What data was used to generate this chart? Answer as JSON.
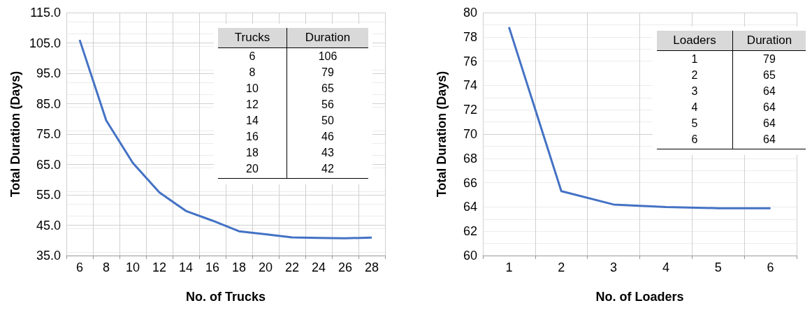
{
  "chart_data": [
    {
      "type": "line",
      "xlabel": "No. of Trucks",
      "ylabel": "Total Duration (Days)",
      "categories": [
        "6",
        "8",
        "10",
        "12",
        "14",
        "16",
        "18",
        "20",
        "22",
        "24",
        "26",
        "28"
      ],
      "series": [
        {
          "color": "#4472c4",
          "values": [
            106,
            79.5,
            65.5,
            55.8,
            49.7,
            46.5,
            43,
            42,
            41,
            40.8,
            40.7,
            40.9
          ]
        }
      ],
      "ylim": [
        35,
        115
      ],
      "yticks": [
        {
          "value": 35,
          "label": "35.0"
        },
        {
          "value": 45,
          "label": "45.0"
        },
        {
          "value": 55,
          "label": "55.0"
        },
        {
          "value": 65,
          "label": "65.0"
        },
        {
          "value": 75,
          "label": "75.0"
        },
        {
          "value": 85,
          "label": "85.0"
        },
        {
          "value": 95,
          "label": "95.0"
        },
        {
          "value": 105,
          "label": "105.0"
        },
        {
          "value": 115,
          "label": "115.0"
        }
      ],
      "annotations": [
        "Trucks",
        "Duration",
        "6",
        "106",
        "8",
        "79",
        "10",
        "65",
        "12",
        "56",
        "14",
        "50",
        "16",
        "46",
        "18",
        "43",
        "20",
        "42"
      ],
      "grid": true,
      "marker": "none"
    },
    {
      "type": "line",
      "xlabel": "No. of Loaders",
      "ylabel": "Total Duration (Days)",
      "categories": [
        "1",
        "2",
        "3",
        "4",
        "5",
        "6"
      ],
      "series": [
        {
          "color": "#4472c4",
          "values": [
            78.8,
            65.3,
            64.2,
            64.0,
            63.9,
            63.9
          ]
        }
      ],
      "ylim": [
        60,
        80
      ],
      "yticks": [
        60,
        62,
        64,
        66,
        68,
        70,
        72,
        74,
        76,
        78,
        80
      ],
      "annotations": [
        "Loaders",
        "Duration",
        "1",
        "79",
        "2",
        "65",
        "3",
        "64",
        "4",
        "64",
        "5",
        "64",
        "6",
        "64"
      ],
      "grid": true,
      "marker": "none"
    }
  ]
}
